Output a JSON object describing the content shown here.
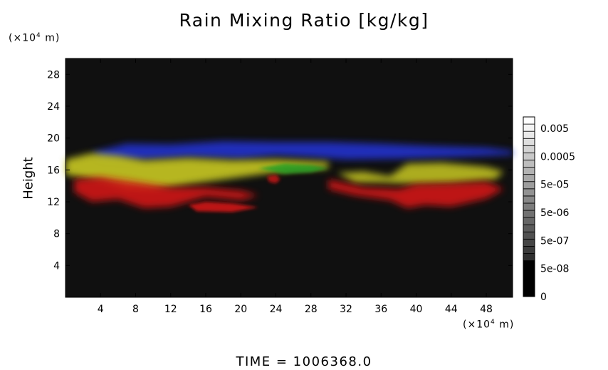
{
  "chart_data": {
    "type": "heatmap",
    "title": "Rain Mixing Ratio [kg/kg]",
    "xlabel": "",
    "ylabel": "Height",
    "x_unit_prefix": "(×10",
    "x_unit_exp": "4",
    "x_unit_suffix": " m)",
    "y_unit_prefix": "(×10",
    "y_unit_exp": "4",
    "y_unit_suffix": " m)",
    "xlim": [
      0,
      51
    ],
    "ylim": [
      0,
      30
    ],
    "x_ticks": [
      4,
      8,
      12,
      16,
      20,
      24,
      28,
      32,
      36,
      40,
      44,
      48
    ],
    "y_ticks": [
      4,
      8,
      12,
      16,
      20,
      24,
      28
    ],
    "colorbar": {
      "labels": [
        "0.005",
        "0.0005",
        "5e-05",
        "5e-06",
        "5e-07",
        "5e-08",
        "0"
      ],
      "levels": 25
    },
    "layers": [
      {
        "color": "#2233cc",
        "y_center": 18.6,
        "description_color": "blue",
        "x_start": 3,
        "x_end": 51
      },
      {
        "color": "#c8c820",
        "y_center": 16.2,
        "description_color": "yellow",
        "x_start": 0,
        "x_end": 50
      },
      {
        "color": "#25a025",
        "y_center": 16.3,
        "description_color": "green",
        "x_start": 22,
        "x_end": 30
      },
      {
        "color": "#d01818",
        "y_center": 13.0,
        "description_color": "red",
        "x_start": 1,
        "x_end": 50
      }
    ],
    "background_color": "#101010"
  },
  "footer": {
    "time_text": "TIME  =  1006368.0"
  }
}
